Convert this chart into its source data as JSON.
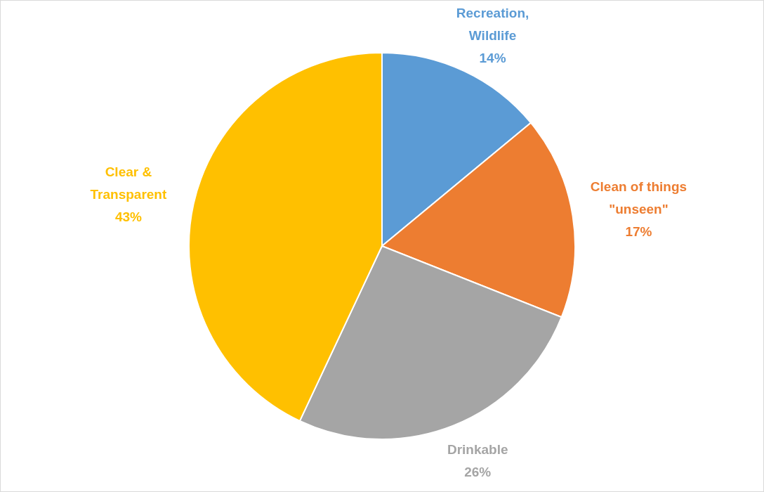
{
  "chart_data": {
    "type": "pie",
    "categories": [
      "Recreation, Wildlife",
      "Clean of things \"unseen\"",
      "Drinkable",
      "Clear & Transparent"
    ],
    "values": [
      14,
      17,
      26,
      43
    ],
    "colors": [
      "#5b9bd5",
      "#ed7d31",
      "#a5a5a5",
      "#ffc000"
    ],
    "value_labels": [
      "14%",
      "17%",
      "26%",
      "43%"
    ],
    "legend": false
  }
}
